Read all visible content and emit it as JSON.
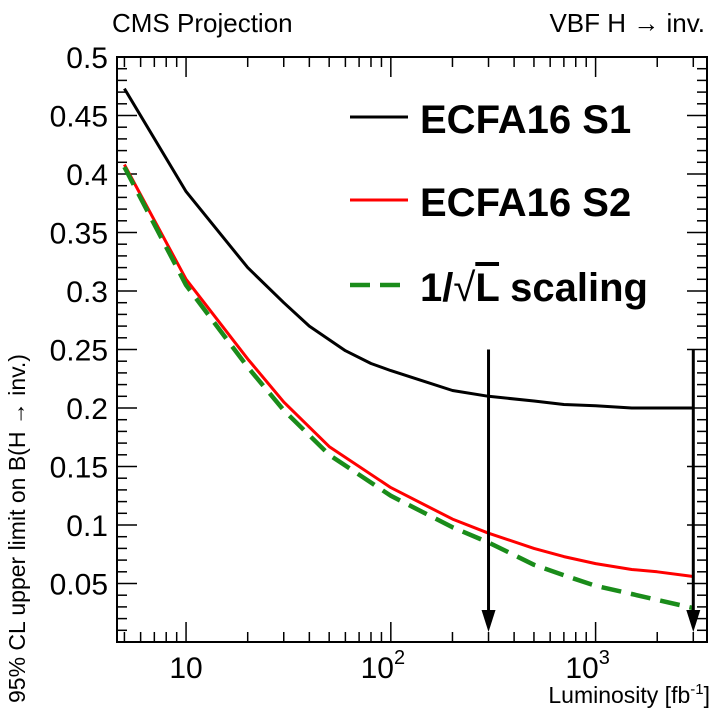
{
  "chart_data": {
    "type": "line",
    "header_left": "CMS Projection",
    "header_right": "VBF H → inv.",
    "xlabel": "Luminosity [fb",
    "xlabel_sup": "-1",
    "xlabel_close": "]",
    "ylabel": "95% CL upper limit on B(H → inv.)",
    "xscale": "log",
    "xlim": [
      4.6,
      3500
    ],
    "ylim": [
      0,
      0.5
    ],
    "x_ticks": [
      {
        "value": 10,
        "base": "10",
        "exp": ""
      },
      {
        "value": 100,
        "base": "10",
        "exp": "2"
      },
      {
        "value": 1000,
        "base": "10",
        "exp": "3"
      }
    ],
    "y_ticks": [
      {
        "value": 0.05,
        "label": "0.05"
      },
      {
        "value": 0.1,
        "label": "0.1"
      },
      {
        "value": 0.15,
        "label": "0.15"
      },
      {
        "value": 0.2,
        "label": "0.2"
      },
      {
        "value": 0.25,
        "label": "0.25"
      },
      {
        "value": 0.3,
        "label": "0.3"
      },
      {
        "value": 0.35,
        "label": "0.35"
      },
      {
        "value": 0.4,
        "label": "0.4"
      },
      {
        "value": 0.45,
        "label": "0.45"
      },
      {
        "value": 0.5,
        "label": "0.5"
      }
    ],
    "legend_position": "top-right",
    "series": [
      {
        "name": "ECFA16 S1",
        "color": "#000000",
        "style": "solid",
        "x": [
          5,
          10,
          20,
          30,
          40,
          60,
          80,
          100,
          200,
          300,
          500,
          700,
          1000,
          1500,
          2000,
          3000
        ],
        "y": [
          0.473,
          0.385,
          0.32,
          0.29,
          0.27,
          0.249,
          0.238,
          0.232,
          0.215,
          0.21,
          0.206,
          0.203,
          0.202,
          0.2,
          0.2,
          0.2
        ]
      },
      {
        "name": "ECFA16 S2",
        "color": "#ff0000",
        "style": "solid",
        "x": [
          5,
          10,
          20,
          30,
          50,
          100,
          200,
          300,
          500,
          700,
          1000,
          1500,
          2000,
          3000
        ],
        "y": [
          0.408,
          0.31,
          0.242,
          0.205,
          0.167,
          0.132,
          0.105,
          0.093,
          0.08,
          0.073,
          0.067,
          0.062,
          0.06,
          0.056
        ]
      },
      {
        "name": "1/√L scaling",
        "color": "#1a8c1a",
        "style": "dashed",
        "x": [
          5,
          10,
          20,
          30,
          50,
          100,
          200,
          300,
          500,
          700,
          1000,
          1500,
          2000,
          3000
        ],
        "y": [
          0.406,
          0.305,
          0.235,
          0.198,
          0.16,
          0.125,
          0.098,
          0.085,
          0.066,
          0.057,
          0.048,
          0.041,
          0.036,
          0.029
        ]
      }
    ],
    "legend": [
      {
        "label": "ECFA16 S1",
        "series": 0
      },
      {
        "label": "ECFA16 S2",
        "series": 1
      },
      {
        "label_prefix": "1/",
        "label_sqrt": "L",
        "label_suffix": " scaling",
        "series": 2
      }
    ],
    "arrows": [
      {
        "x": 300,
        "y_top": 0.25,
        "y_bottom": 0
      },
      {
        "x": 3000,
        "y_top": 0.25,
        "y_bottom": 0
      }
    ]
  }
}
